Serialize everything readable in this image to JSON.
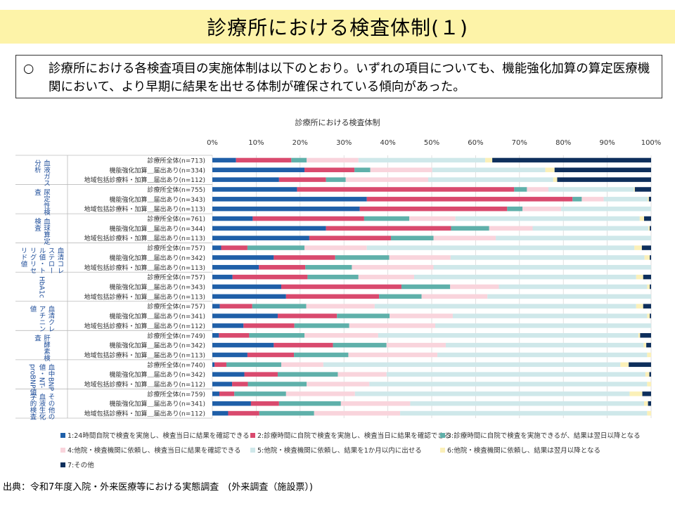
{
  "header": {
    "title": "診療所における検査体制(１)",
    "summary_bullet": "○",
    "summary": "診療所における各検査項目の実施体制は以下のとおり。いずれの項目についても、機能強化加算の算定医療機関において、より早期に結果を出せる体制が確保されている傾向があった。"
  },
  "source": "出典：令和7年度入院・外来医療等における実態調査　(外来調査（施設票）)",
  "chart_data": {
    "type": "bar",
    "stacked": true,
    "orientation": "horizontal",
    "title": "診療所における検査体制",
    "xlim": [
      0,
      100
    ],
    "x_ticks": [
      "0%",
      "10%",
      "20%",
      "30%",
      "40%",
      "50%",
      "60%",
      "70%",
      "80%",
      "90%",
      "100%"
    ],
    "grid": true,
    "legend_position": "bottom",
    "series": [
      {
        "name": "1:24時間自院で検査を実施し、検査当日に結果を確認できる",
        "color": "#1f5fa8"
      },
      {
        "name": "2:診療時間に自院で検査を実施し、検査当日に結果を確認できる",
        "color": "#d94a6e"
      },
      {
        "name": "3:診療時間に自院で検査を実施できるが、結果は翌日以降となる",
        "color": "#5fb0aa"
      },
      {
        "name": "4:他院・検査機関に依頼し、検査当日に結果を確認できる",
        "color": "#f9d4dc"
      },
      {
        "name": "5:他院・検査機関に依頼し、結果を1か月以内に出せる",
        "color": "#cfe8ea"
      },
      {
        "name": "6:他院・検査機関に依頼し、結果は翌月以降となる",
        "color": "#fbf0b8"
      },
      {
        "name": "7:その他",
        "color": "#0e2f5c"
      }
    ],
    "groups": [
      {
        "name": "血液ガス分析",
        "label_lines": [
          "血液ガス",
          "分析"
        ],
        "rows": [
          {
            "label": "診療所全体(n=713)",
            "values": [
              5.4,
              12.6,
              3.5,
              11.8,
              28.9,
              1.6,
              36.2
            ]
          },
          {
            "label": "機能強化加算＿届出あり(n=334)",
            "values": [
              21.0,
              11.4,
              3.6,
              14.1,
              25.8,
              2.1,
              22.0
            ]
          },
          {
            "label": "地域包括診療料・加算＿届出あり(n=112)",
            "values": [
              15.2,
              10.7,
              4.5,
              18.8,
              28.5,
              0.9,
              21.4
            ]
          }
        ]
      },
      {
        "name": "尿定性検査",
        "label_lines": [
          "尿定性検",
          "査"
        ],
        "rows": [
          {
            "label": "診療所全体(n=755)",
            "values": [
              19.3,
              49.5,
              2.9,
              4.9,
              19.5,
              0.2,
              3.7
            ]
          },
          {
            "label": "機能強化加算＿届出あり(n=343)",
            "values": [
              35.2,
              46.9,
              2.1,
              5.0,
              10.0,
              0.3,
              0.5
            ]
          },
          {
            "label": "地域包括診療料・加算＿届出あり(n=113)",
            "values": [
              33.6,
              33.6,
              3.5,
              8.8,
              20.5,
              0.0,
              0.0
            ]
          }
        ]
      },
      {
        "name": "血球算定検査",
        "label_lines": [
          "血球算定",
          "検査"
        ],
        "rows": [
          {
            "label": "診療所全体(n=761)",
            "values": [
              9.2,
              25.4,
              10.3,
              10.5,
              42.0,
              1.0,
              1.6
            ]
          },
          {
            "label": "機能強化加算＿届出あり(n=344)",
            "values": [
              25.9,
              28.5,
              8.7,
              9.9,
              26.4,
              0.3,
              0.3
            ]
          },
          {
            "label": "地域包括診療料・加算＿届出あり(n=113)",
            "values": [
              22.1,
              18.6,
              9.7,
              14.2,
              35.4,
              0.0,
              0.0
            ]
          }
        ]
      },
      {
        "name": "血清コレステロール値・トリグリセリド値",
        "label_lines": [
          "血清コレ",
          "ステロー",
          "ル値・ト",
          "リグリセ",
          "リド値"
        ],
        "rows": [
          {
            "label": "診療所全体(n=757)",
            "values": [
              2.0,
              6.0,
              13.0,
              14.2,
              61.0,
              1.7,
              2.1
            ]
          },
          {
            "label": "機能強化加算＿届出あり(n=342)",
            "values": [
              14.0,
              14.0,
              12.3,
              14.0,
              44.2,
              1.2,
              0.3
            ]
          },
          {
            "label": "地域包括診療料・加算＿届出あり(n=113)",
            "values": [
              10.6,
              10.6,
              10.6,
              18.6,
              49.6,
              0.0,
              0.0
            ]
          }
        ]
      },
      {
        "name": "HbA1c",
        "label_lines": [
          "HbA1c"
        ],
        "rows": [
          {
            "label": "診療所全体(n=757)",
            "values": [
              4.6,
              17.1,
              11.6,
              12.7,
              50.6,
              1.6,
              1.8
            ]
          },
          {
            "label": "機能強化加算＿届出あり(n=343)",
            "values": [
              15.7,
              27.4,
              11.1,
              11.1,
              33.8,
              0.6,
              0.3
            ]
          },
          {
            "label": "地域包括診療料・加算＿届出あり(n=113)",
            "values": [
              16.8,
              21.2,
              9.7,
              15.0,
              37.3,
              0.0,
              0.0
            ]
          }
        ]
      },
      {
        "name": "血清クレアチニン値",
        "label_lines": [
          "血清クレ",
          "アチニン",
          "値"
        ],
        "rows": [
          {
            "label": "診療所全体(n=757)",
            "values": [
              1.7,
              7.4,
              12.3,
              15.6,
              59.6,
              1.6,
              1.8
            ]
          },
          {
            "label": "機能強化加算＿届出あり(n=341)",
            "values": [
              14.9,
              13.5,
              12.0,
              14.4,
              44.3,
              0.6,
              0.3
            ]
          },
          {
            "label": "地域包括診療料・加算＿届出あり(n=112)",
            "values": [
              7.1,
              11.6,
              12.5,
              19.6,
              49.2,
              0.0,
              0.0
            ]
          }
        ]
      },
      {
        "name": "肝酵素検査",
        "label_lines": [
          "肝酵素検",
          "査"
        ],
        "rows": [
          {
            "label": "診療所全体(n=749)",
            "values": [
              1.5,
              6.9,
              12.6,
              16.8,
              59.3,
              0.4,
              2.5
            ]
          },
          {
            "label": "機能強化加算＿届出あり(n=342)",
            "values": [
              14.0,
              13.5,
              12.2,
              13.5,
              45.1,
              0.6,
              1.1
            ]
          },
          {
            "label": "地域包括診療料・加算＿届出あり(n=113)",
            "values": [
              8.0,
              10.6,
              12.4,
              20.3,
              47.8,
              0.9,
              0.0
            ]
          }
        ]
      },
      {
        "name": "血中BNP値・NT-proBNP値",
        "label_lines": [
          "血中BNP",
          "値・NT-",
          "proBNP値"
        ],
        "rows": [
          {
            "label": "診療所全体(n=740)",
            "values": [
              0.5,
              2.7,
              12.5,
              9.6,
              67.7,
              1.9,
              5.1
            ]
          },
          {
            "label": "機能強化加算＿届出あり(n=342)",
            "values": [
              7.3,
              7.6,
              13.7,
              11.1,
              59.0,
              0.9,
              0.4
            ]
          },
          {
            "label": "地域包括診療料・加算＿届出あり(n=112)",
            "values": [
              4.5,
              3.6,
              13.4,
              14.3,
              63.3,
              0.9,
              0.0
            ]
          }
        ]
      },
      {
        "name": "その他の血液生化学的検査",
        "label_lines": [
          "その他の",
          "血液生化",
          "学的検査"
        ],
        "rows": [
          {
            "label": "診療所全体(n=759)",
            "values": [
              1.6,
              3.4,
              11.8,
              15.7,
              62.6,
              2.9,
              2.0
            ]
          },
          {
            "label": "機能強化加算＿届出あり(n=341)",
            "values": [
              8.8,
              6.4,
              14.1,
              15.8,
              53.3,
              0.9,
              0.7
            ]
          },
          {
            "label": "地域包括診療料・加算＿届出あり(n=112)",
            "values": [
              3.6,
              7.1,
              12.5,
              19.6,
              56.3,
              0.9,
              0.0
            ]
          }
        ]
      }
    ]
  }
}
